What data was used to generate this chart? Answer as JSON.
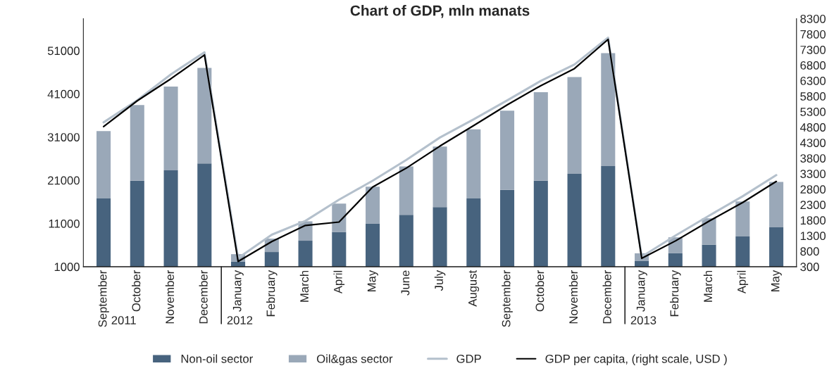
{
  "chart_data": {
    "type": "bar",
    "title": "Chart of GDP, mln manats",
    "stacked": true,
    "categories": [
      "September",
      "October",
      "November",
      "December",
      "January",
      "February",
      "March",
      "April",
      "May",
      "June",
      "July",
      "August",
      "September",
      "October",
      "November",
      "December",
      "January",
      "February",
      "March",
      "April",
      "May"
    ],
    "series": [
      {
        "name": "Non-oil sector",
        "color": "#47637e",
        "values": [
          16800,
          20900,
          23300,
          24900,
          2200,
          4400,
          7000,
          9000,
          11000,
          13000,
          14800,
          16800,
          18800,
          20900,
          22500,
          24300,
          2300,
          4100,
          6100,
          8000,
          10100
        ]
      },
      {
        "name": "Oil&gas sector",
        "color": "#9aa8b8",
        "values": [
          15600,
          17500,
          19400,
          22100,
          1700,
          3100,
          4500,
          6600,
          8500,
          11200,
          14000,
          16000,
          18300,
          20500,
          22400,
          26100,
          1800,
          3700,
          6100,
          8100,
          10500
        ]
      },
      {
        "name": "GDP",
        "type": "line",
        "color": "#b4c0cc",
        "values": [
          34400,
          39500,
          45500,
          50600,
          3000,
          8400,
          11600,
          16500,
          20900,
          25700,
          30900,
          35100,
          39500,
          44000,
          47800,
          54000,
          3300,
          8200,
          12800,
          17300,
          22200
        ]
      },
      {
        "name": "GDP per capita, (right scale, USD )",
        "type": "line",
        "axis": "y2",
        "color": "#000000",
        "values": [
          4820,
          5650,
          6360,
          7130,
          470,
          1110,
          1630,
          1740,
          2870,
          3480,
          4190,
          4850,
          5520,
          6140,
          6690,
          7630,
          570,
          1130,
          1770,
          2370,
          3050
        ]
      }
    ],
    "ylim": [
      1000,
      58400
    ],
    "yticks": [
      1000,
      11000,
      21000,
      31000,
      41000,
      51000
    ],
    "y2lim": [
      300,
      8300
    ],
    "y2ticks": [
      300,
      800,
      1300,
      1800,
      2300,
      2800,
      3300,
      3800,
      4300,
      4800,
      5300,
      5800,
      6300,
      6800,
      7300,
      7800,
      8300
    ],
    "annotations": [
      "2011",
      "2012",
      "2013"
    ],
    "legend": "bottom",
    "grid": false
  }
}
